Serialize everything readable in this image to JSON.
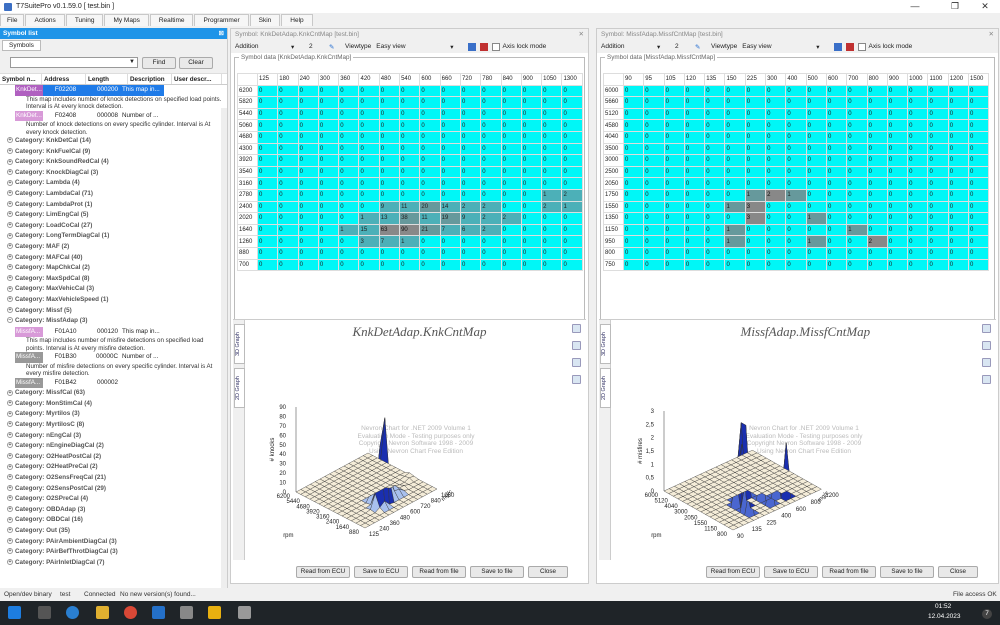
{
  "window": {
    "title": "T7SuitePro v0.1.59.0 [ test.bin ]",
    "min": "—",
    "max": "❐",
    "close": "✕"
  },
  "menu": [
    "File",
    "Actions",
    "Tuning",
    "My Maps",
    "Realtime",
    "Programmer",
    "Skin",
    "Help"
  ],
  "left": {
    "title": "Symbol list",
    "pin": "⊠",
    "tab": "Symbols",
    "find": "Find",
    "clear": "Clear",
    "columns": [
      "Symbol n...",
      "Address",
      "Length",
      "Description",
      "User descr..."
    ],
    "items": [
      {
        "type": "sym",
        "name": "KnkDet...",
        "addr": "F02208",
        "len": "000200",
        "desc": "This map in...",
        "sel": true
      },
      {
        "type": "desc",
        "text": "This map includes number of knock detections on specified load points. Interval is At every knock detection."
      },
      {
        "type": "sym",
        "name": "KnkDet...",
        "addr": "F02408",
        "len": "000008",
        "desc": "Number of ..."
      },
      {
        "type": "desc",
        "text": "Number of knock detections on every specific cylinder. Interval is At every knock detection."
      },
      {
        "type": "cat",
        "text": "Category: KnkDetCal (14)"
      },
      {
        "type": "cat",
        "text": "Category: KnkFuelCal (9)"
      },
      {
        "type": "cat",
        "text": "Category: KnkSoundRedCal (4)"
      },
      {
        "type": "cat",
        "text": "Category: KnockDiagCal (3)"
      },
      {
        "type": "cat",
        "text": "Category: Lambda (4)"
      },
      {
        "type": "cat",
        "text": "Category: LambdaCal (71)"
      },
      {
        "type": "cat",
        "text": "Category: LambdaProt (1)"
      },
      {
        "type": "cat",
        "text": "Category: LimEngCal (5)"
      },
      {
        "type": "cat",
        "text": "Category: LoadCoCal (27)"
      },
      {
        "type": "cat",
        "text": "Category: LongTermDiagCal (1)"
      },
      {
        "type": "cat",
        "text": "Category: MAF (2)"
      },
      {
        "type": "cat",
        "text": "Category: MAFCal (40)"
      },
      {
        "type": "cat",
        "text": "Category: MapChkCal (2)"
      },
      {
        "type": "cat",
        "text": "Category: MaxSpdCal (8)"
      },
      {
        "type": "cat",
        "text": "Category: MaxVehicCal (3)"
      },
      {
        "type": "cat",
        "text": "Category: MaxVehicleSpeed (1)"
      },
      {
        "type": "cat",
        "text": "Category: Missf (5)"
      },
      {
        "type": "cat",
        "text": "Category: MissfAdap (3)",
        "open": true
      },
      {
        "type": "sym",
        "name": "MissfA...",
        "addr": "F01A10",
        "len": "000120",
        "desc": "This map in..."
      },
      {
        "type": "desc",
        "text": "This map includes number of misfire detections on specified load points. Interval is At every misfire detection."
      },
      {
        "type": "sym",
        "name": "MissfA...",
        "addr": "F01B30",
        "len": "00000C",
        "desc": "Number of ...",
        "gray": true
      },
      {
        "type": "desc",
        "text": "Number of misfire detections on every specific cylinder. Interval is At every misfire detection."
      },
      {
        "type": "sym",
        "name": "MissfA...",
        "addr": "F01B42",
        "len": "000002",
        "desc": "",
        "gray": true
      },
      {
        "type": "cat",
        "text": "Category: MissfCal (63)"
      },
      {
        "type": "cat",
        "text": "Category: MonStimCal (4)"
      },
      {
        "type": "cat",
        "text": "Category: Myrtilos (3)"
      },
      {
        "type": "cat",
        "text": "Category: MyrtilosC (8)"
      },
      {
        "type": "cat",
        "text": "Category: nEngCal (3)"
      },
      {
        "type": "cat",
        "text": "Category: nEngineDiagCal (2)"
      },
      {
        "type": "cat",
        "text": "Category: O2HeatPostCal (2)"
      },
      {
        "type": "cat",
        "text": "Category: O2HeatPreCal (2)"
      },
      {
        "type": "cat",
        "text": "Category: O2SensFreqCal (21)"
      },
      {
        "type": "cat",
        "text": "Category: O2SensPostCal (29)"
      },
      {
        "type": "cat",
        "text": "Category: O2SPreCal (4)"
      },
      {
        "type": "cat",
        "text": "Category: OBDAdap (3)"
      },
      {
        "type": "cat",
        "text": "Category: OBDCal (16)"
      },
      {
        "type": "cat",
        "text": "Category: Out (35)"
      },
      {
        "type": "cat",
        "text": "Category: PAirAmbientDiagCal (3)"
      },
      {
        "type": "cat",
        "text": "Category: PAirBefThrotDiagCal (3)"
      },
      {
        "type": "cat",
        "text": "Category: PAirInletDiagCal (7)"
      }
    ]
  },
  "panels": [
    {
      "header": "Symbol: KnkDetAdap.KnkCntMap [test.bin]",
      "mode": "Addition",
      "modeval": "2",
      "viewtype_label": "Viewtype",
      "viewtype": "Easy view",
      "axislock": "Axis lock mode",
      "group": "Symbol data [KnkDetAdap.KnkCntMap]",
      "cols": [
        "125",
        "180",
        "240",
        "300",
        "360",
        "420",
        "480",
        "540",
        "600",
        "660",
        "720",
        "780",
        "840",
        "900",
        "1050",
        "1300"
      ],
      "rows": [
        "6200",
        "5820",
        "5440",
        "5060",
        "4680",
        "4300",
        "3920",
        "3540",
        "3160",
        "2780",
        "2400",
        "2020",
        "1640",
        "1260",
        "880",
        "700"
      ],
      "data": [
        [
          0,
          0,
          0,
          0,
          0,
          0,
          0,
          0,
          0,
          0,
          0,
          0,
          0,
          0,
          0,
          0
        ],
        [
          0,
          0,
          0,
          0,
          0,
          0,
          0,
          0,
          0,
          0,
          0,
          0,
          0,
          0,
          0,
          0
        ],
        [
          0,
          0,
          0,
          0,
          0,
          0,
          0,
          0,
          0,
          0,
          0,
          0,
          0,
          0,
          0,
          0
        ],
        [
          0,
          0,
          0,
          0,
          0,
          0,
          0,
          0,
          0,
          0,
          0,
          0,
          0,
          0,
          0,
          0
        ],
        [
          0,
          0,
          0,
          0,
          0,
          0,
          0,
          0,
          0,
          0,
          0,
          0,
          0,
          0,
          0,
          0
        ],
        [
          0,
          0,
          0,
          0,
          0,
          0,
          0,
          0,
          0,
          0,
          0,
          0,
          0,
          0,
          0,
          0
        ],
        [
          0,
          0,
          0,
          0,
          0,
          0,
          0,
          0,
          0,
          0,
          0,
          0,
          0,
          0,
          0,
          0
        ],
        [
          0,
          0,
          0,
          0,
          0,
          0,
          0,
          0,
          0,
          0,
          0,
          0,
          0,
          0,
          0,
          0
        ],
        [
          0,
          0,
          0,
          0,
          0,
          0,
          0,
          0,
          0,
          0,
          0,
          0,
          0,
          0,
          0,
          0
        ],
        [
          0,
          0,
          0,
          0,
          0,
          0,
          0,
          0,
          0,
          0,
          0,
          0,
          0,
          0,
          1,
          2
        ],
        [
          0,
          0,
          0,
          0,
          0,
          0,
          9,
          11,
          20,
          14,
          2,
          2,
          0,
          0,
          2,
          1
        ],
        [
          0,
          0,
          0,
          0,
          0,
          1,
          13,
          38,
          11,
          19,
          9,
          2,
          2,
          0,
          0,
          0
        ],
        [
          0,
          0,
          0,
          0,
          1,
          15,
          63,
          90,
          21,
          7,
          6,
          2,
          0,
          0,
          0,
          0
        ],
        [
          0,
          0,
          0,
          0,
          0,
          3,
          7,
          1,
          0,
          0,
          0,
          0,
          0,
          0,
          0,
          0
        ],
        [
          0,
          0,
          0,
          0,
          0,
          0,
          0,
          0,
          0,
          0,
          0,
          0,
          0,
          0,
          0,
          0
        ],
        [
          0,
          0,
          0,
          0,
          0,
          0,
          0,
          0,
          0,
          0,
          0,
          0,
          0,
          0,
          0,
          0
        ]
      ],
      "chart_title": "KnkDetAdap.KnkCntMap",
      "zlabel": "# knocks",
      "ylabel": "rpm",
      "xlabel": "mg/c",
      "zticks": [
        "90",
        "80",
        "70",
        "60",
        "50",
        "40",
        "30",
        "20",
        "10",
        "0"
      ],
      "yticks": [
        "6200",
        "5440",
        "4680",
        "3920",
        "3160",
        "2400",
        "1640",
        "880"
      ],
      "xticks": [
        "1050",
        "840",
        "720",
        "600",
        "480",
        "360",
        "240",
        "125"
      ],
      "watermark": [
        "Nevron Chart for .NET 2009 Volume 1",
        "Evaluation Mode - Testing purposes only",
        "Copyright Nevron Software 1998 - 2009",
        "Using Nevron Chart Free Edition"
      ],
      "tabs": [
        "3D Graph",
        "2D Graph"
      ],
      "buttons": [
        "Read from ECU",
        "Save to ECU",
        "Read from file",
        "Save to file",
        "Close"
      ]
    },
    {
      "header": "Symbol: MissfAdap.MissfCntMap [test.bin]",
      "mode": "Addition",
      "modeval": "2",
      "viewtype_label": "Viewtype",
      "viewtype": "Easy view",
      "axislock": "Axis lock mode",
      "group": "Symbol data [MissfAdap.MissfCntMap]",
      "cols": [
        "90",
        "95",
        "105",
        "120",
        "135",
        "150",
        "225",
        "300",
        "400",
        "500",
        "600",
        "700",
        "800",
        "900",
        "1000",
        "1100",
        "1200",
        "1500"
      ],
      "rows": [
        "6000",
        "5660",
        "5120",
        "4580",
        "4040",
        "3500",
        "3000",
        "2500",
        "2050",
        "1750",
        "1550",
        "1350",
        "1150",
        "950",
        "800",
        "750"
      ],
      "data": [
        [
          0,
          0,
          0,
          0,
          0,
          0,
          0,
          0,
          0,
          0,
          0,
          0,
          0,
          0,
          0,
          0,
          0,
          0
        ],
        [
          0,
          0,
          0,
          0,
          0,
          0,
          0,
          0,
          0,
          0,
          0,
          0,
          0,
          0,
          0,
          0,
          0,
          0
        ],
        [
          0,
          0,
          0,
          0,
          0,
          0,
          0,
          0,
          0,
          0,
          0,
          0,
          0,
          0,
          0,
          0,
          0,
          0
        ],
        [
          0,
          0,
          0,
          0,
          0,
          0,
          0,
          0,
          0,
          0,
          0,
          0,
          0,
          0,
          0,
          0,
          0,
          0
        ],
        [
          0,
          0,
          0,
          0,
          0,
          0,
          0,
          0,
          0,
          0,
          0,
          0,
          0,
          0,
          0,
          0,
          0,
          0
        ],
        [
          0,
          0,
          0,
          0,
          0,
          0,
          0,
          0,
          0,
          0,
          0,
          0,
          0,
          0,
          0,
          0,
          0,
          0
        ],
        [
          0,
          0,
          0,
          0,
          0,
          0,
          0,
          0,
          0,
          0,
          0,
          0,
          0,
          0,
          0,
          0,
          0,
          0
        ],
        [
          0,
          0,
          0,
          0,
          0,
          0,
          0,
          0,
          0,
          0,
          0,
          0,
          0,
          0,
          0,
          0,
          0,
          0
        ],
        [
          0,
          0,
          0,
          0,
          0,
          0,
          0,
          0,
          0,
          0,
          0,
          0,
          0,
          0,
          0,
          0,
          0,
          0
        ],
        [
          0,
          0,
          0,
          0,
          0,
          0,
          1,
          2,
          1,
          0,
          0,
          0,
          0,
          0,
          0,
          0,
          0,
          0
        ],
        [
          0,
          0,
          0,
          0,
          0,
          1,
          3,
          0,
          0,
          0,
          0,
          0,
          0,
          0,
          0,
          0,
          0,
          0
        ],
        [
          0,
          0,
          0,
          0,
          0,
          0,
          3,
          0,
          0,
          1,
          0,
          0,
          0,
          0,
          0,
          0,
          0,
          0
        ],
        [
          0,
          0,
          0,
          0,
          0,
          1,
          0,
          0,
          0,
          0,
          0,
          1,
          0,
          0,
          0,
          0,
          0,
          0
        ],
        [
          0,
          0,
          0,
          0,
          0,
          1,
          0,
          0,
          0,
          1,
          0,
          0,
          2,
          0,
          0,
          0,
          0,
          0
        ],
        [
          0,
          0,
          0,
          0,
          0,
          0,
          0,
          0,
          0,
          0,
          0,
          0,
          0,
          0,
          0,
          0,
          0,
          0
        ],
        [
          0,
          0,
          0,
          0,
          0,
          0,
          0,
          0,
          0,
          0,
          0,
          0,
          0,
          0,
          0,
          0,
          0,
          0
        ]
      ],
      "chart_title": "MissfAdap.MissfCntMap",
      "zlabel": "# misfires",
      "ylabel": "rpm",
      "xlabel": "mg/c",
      "zticks": [
        "3",
        "2,5",
        "2",
        "1,5",
        "1",
        "0,5",
        "0"
      ],
      "yticks": [
        "6000",
        "5120",
        "4040",
        "3000",
        "2050",
        "1550",
        "1150",
        "800"
      ],
      "xticks": [
        "1200",
        "800",
        "600",
        "400",
        "225",
        "135",
        "90"
      ],
      "watermark": [
        "Nevron Chart for .NET 2009 Volume 1",
        "Evaluation Mode - Testing purposes only",
        "Copyright Nevron Software 1998 - 2009",
        "Using Nevron Chart Free Edition"
      ],
      "tabs": [
        "3D Graph",
        "2D Graph"
      ],
      "buttons": [
        "Read from ECU",
        "Save to ECU",
        "Read from file",
        "Save to file",
        "Close"
      ]
    }
  ],
  "status": {
    "binary": "Open/dev binary",
    "file": "test",
    "conn": "Connected",
    "ver": "No new version(s) found...",
    "access": "File access OK"
  },
  "taskbar": {
    "time": "01:52",
    "date": "12.04.2023",
    "badge": "7"
  },
  "colors": {
    "cyan": "#00f7f7",
    "accent": "#1f94e8"
  }
}
